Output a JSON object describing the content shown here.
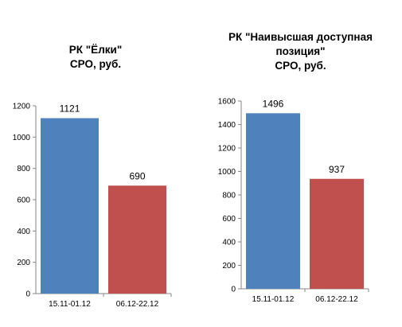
{
  "chart_data": [
    {
      "type": "bar",
      "title_lines": [
        "РК \"Ёлки\"",
        "СРО, руб."
      ],
      "categories": [
        "15.11-01.12",
        "06.12-22.12"
      ],
      "values": [
        1121,
        690
      ],
      "data_labels": [
        "1121",
        "690"
      ],
      "ylim": [
        0,
        1200
      ],
      "yticks": [
        "0",
        "200",
        "400",
        "600",
        "800",
        "1000",
        "1200"
      ],
      "colors": [
        "#4f81bd",
        "#c0504d"
      ],
      "grid": false,
      "legend": "none"
    },
    {
      "type": "bar",
      "title_lines": [
        "РК \"Наивысшая доступная",
        "позиция\"",
        "СРО, руб."
      ],
      "categories": [
        "15.11-01.12",
        "06.12-22.12"
      ],
      "values": [
        1496,
        937
      ],
      "data_labels": [
        "1496",
        "937"
      ],
      "ylim": [
        0,
        1600
      ],
      "yticks": [
        "0",
        "200",
        "400",
        "600",
        "800",
        "1000",
        "1200",
        "1400",
        "1600"
      ],
      "colors": [
        "#4f81bd",
        "#c0504d"
      ],
      "grid": false,
      "legend": "none"
    }
  ]
}
